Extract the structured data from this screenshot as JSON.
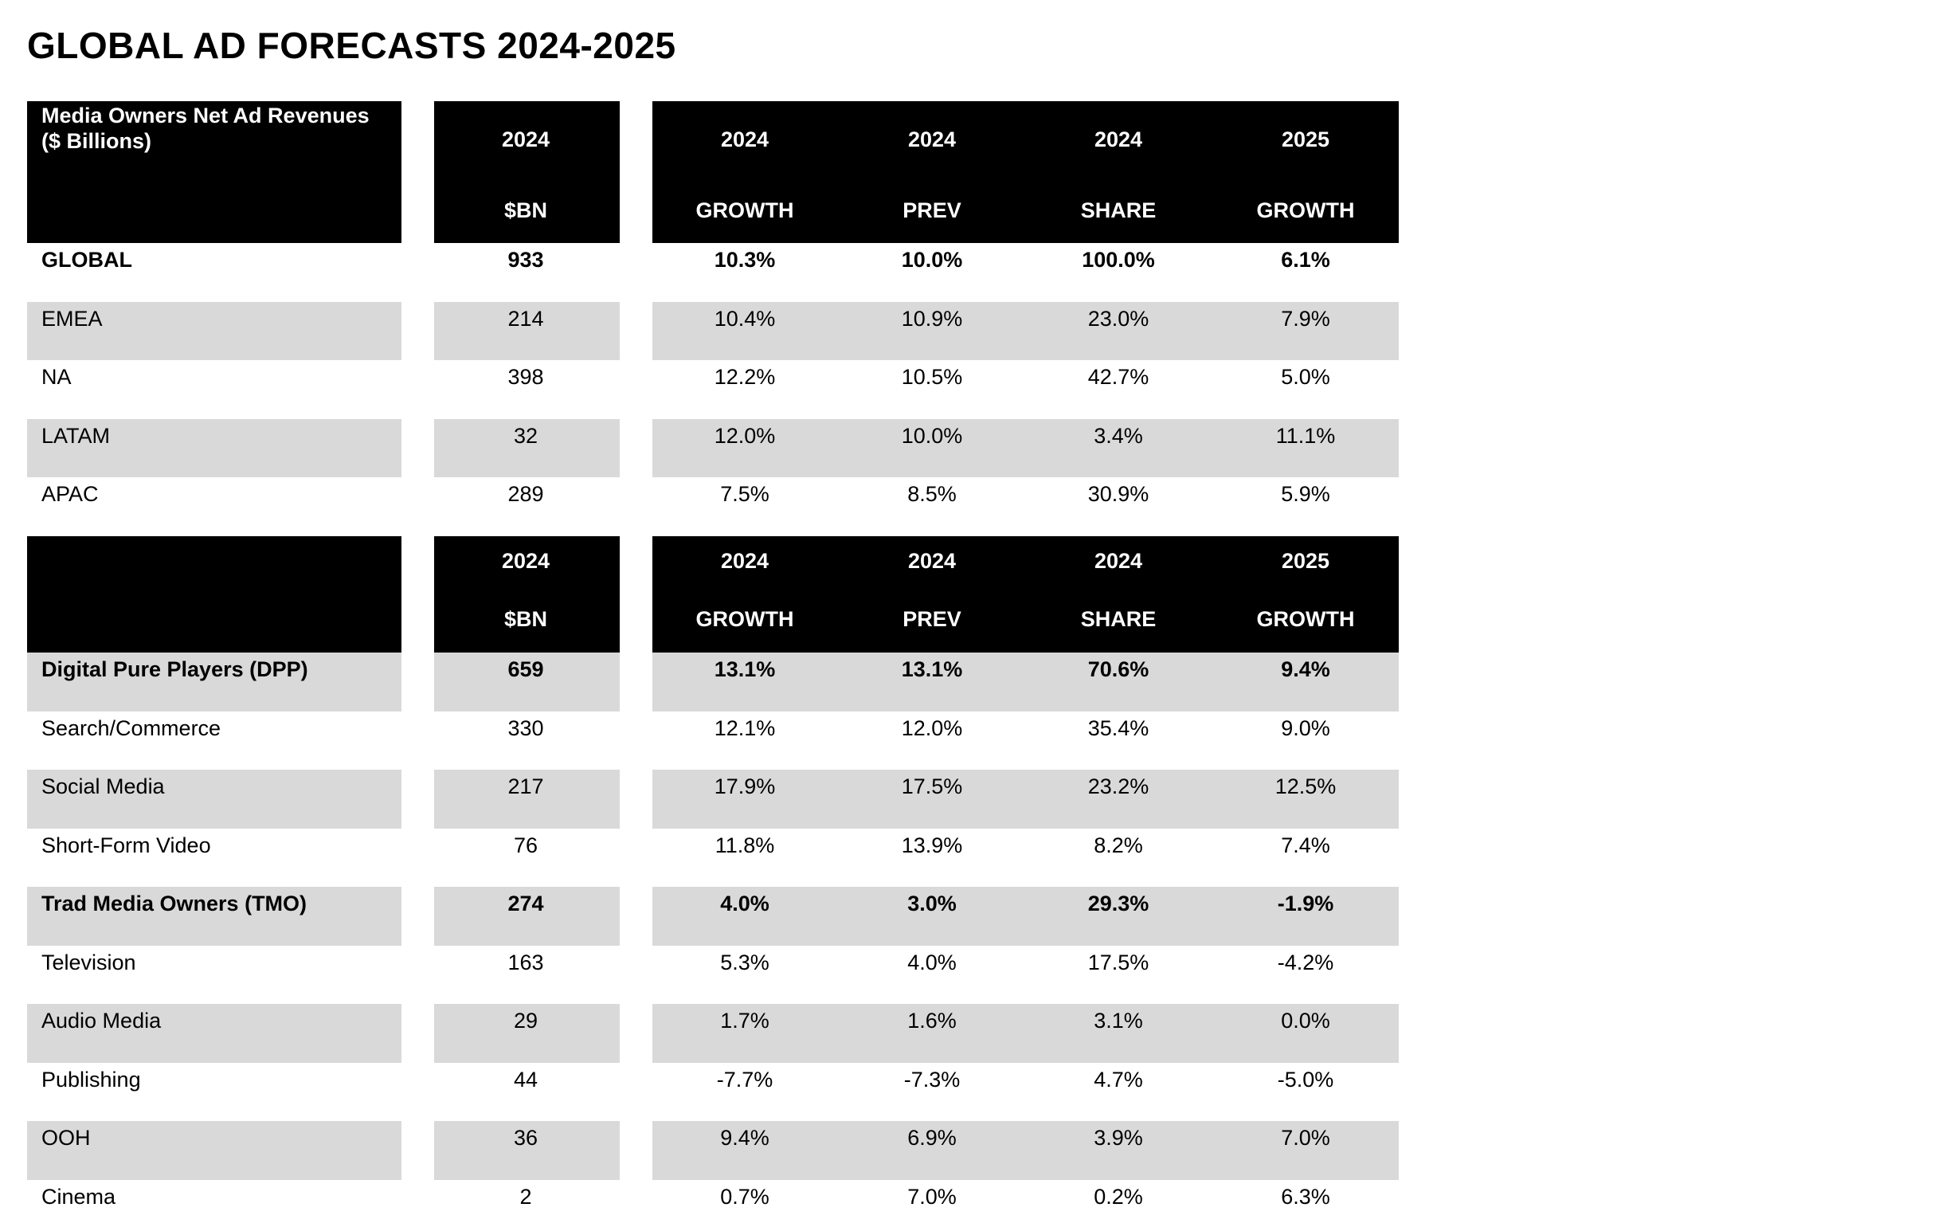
{
  "title": "GLOBAL AD FORECASTS 2024-2025",
  "chart_data": {
    "type": "table",
    "tables": [
      {
        "label_header": "Media Owners Net Ad Revenues ($ Billions)",
        "columns": [
          {
            "year": "2024",
            "metric": "$BN"
          },
          {
            "year": "2024",
            "metric": "GROWTH"
          },
          {
            "year": "2024",
            "metric": "PREV"
          },
          {
            "year": "2024",
            "metric": "SHARE"
          },
          {
            "year": "2025",
            "metric": "GROWTH"
          }
        ],
        "rows": [
          {
            "label": "GLOBAL",
            "bold": true,
            "values": [
              "933",
              "10.3%",
              "10.0%",
              "100.0%",
              "6.1%"
            ]
          },
          {
            "label": "EMEA",
            "bold": false,
            "values": [
              "214",
              "10.4%",
              "10.9%",
              "23.0%",
              "7.9%"
            ]
          },
          {
            "label": "NA",
            "bold": false,
            "values": [
              "398",
              "12.2%",
              "10.5%",
              "42.7%",
              "5.0%"
            ]
          },
          {
            "label": "LATAM",
            "bold": false,
            "values": [
              "32",
              "12.0%",
              "10.0%",
              "3.4%",
              "11.1%"
            ]
          },
          {
            "label": "APAC",
            "bold": false,
            "values": [
              "289",
              "7.5%",
              "8.5%",
              "30.9%",
              "5.9%"
            ]
          }
        ]
      },
      {
        "label_header": "",
        "columns": [
          {
            "year": "2024",
            "metric": "$BN"
          },
          {
            "year": "2024",
            "metric": "GROWTH"
          },
          {
            "year": "2024",
            "metric": "PREV"
          },
          {
            "year": "2024",
            "metric": "SHARE"
          },
          {
            "year": "2025",
            "metric": "GROWTH"
          }
        ],
        "rows": [
          {
            "label": "Digital Pure Players (DPP)",
            "bold": true,
            "values": [
              "659",
              "13.1%",
              "13.1%",
              "70.6%",
              "9.4%"
            ]
          },
          {
            "label": "Search/Commerce",
            "bold": false,
            "values": [
              "330",
              "12.1%",
              "12.0%",
              "35.4%",
              "9.0%"
            ]
          },
          {
            "label": "Social Media",
            "bold": false,
            "values": [
              "217",
              "17.9%",
              "17.5%",
              "23.2%",
              "12.5%"
            ]
          },
          {
            "label": "Short-Form Video",
            "bold": false,
            "values": [
              "76",
              "11.8%",
              "13.9%",
              "8.2%",
              "7.4%"
            ]
          },
          {
            "label": "Trad Media Owners (TMO)",
            "bold": true,
            "values": [
              "274",
              "4.0%",
              "3.0%",
              "29.3%",
              "-1.9%"
            ]
          },
          {
            "label": "Television",
            "bold": false,
            "values": [
              "163",
              "5.3%",
              "4.0%",
              "17.5%",
              "-4.2%"
            ]
          },
          {
            "label": "Audio Media",
            "bold": false,
            "values": [
              "29",
              "1.7%",
              "1.6%",
              "3.1%",
              "0.0%"
            ]
          },
          {
            "label": "Publishing",
            "bold": false,
            "values": [
              "44",
              "-7.7%",
              "-7.3%",
              "4.7%",
              "-5.0%"
            ]
          },
          {
            "label": "OOH",
            "bold": false,
            "values": [
              "36",
              "9.4%",
              "6.9%",
              "3.9%",
              "7.0%"
            ]
          },
          {
            "label": "Cinema",
            "bold": false,
            "values": [
              "2",
              "0.7%",
              "7.0%",
              "0.2%",
              "6.3%"
            ]
          }
        ]
      }
    ]
  },
  "colors": {
    "header_bg": "#000000",
    "header_text": "#ffffff",
    "row_shade": "#d9d9d9",
    "body_text": "#000000"
  }
}
